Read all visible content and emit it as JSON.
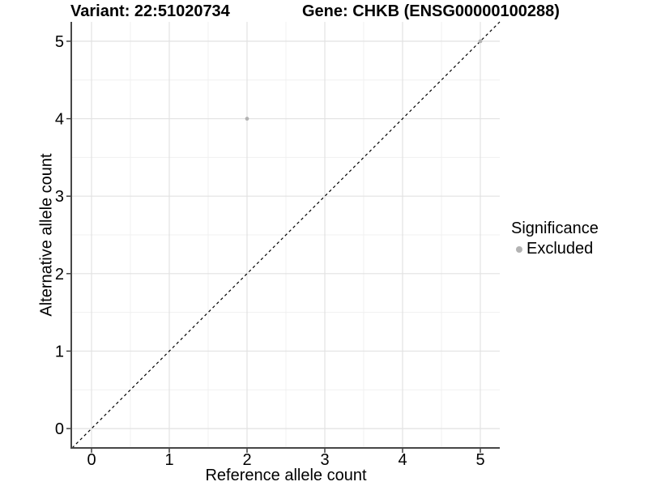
{
  "chart_data": {
    "type": "scatter",
    "title_left": "Variant: 22:51020734",
    "title_right": "Gene: CHKB (ENSG00000100288)",
    "xlabel": "Reference allele count",
    "ylabel": "Alternative allele count",
    "xlim": [
      -0.25,
      5.25
    ],
    "ylim": [
      -0.25,
      5.25
    ],
    "x_ticks": [
      0,
      1,
      2,
      3,
      4,
      5
    ],
    "y_ticks": [
      0,
      1,
      2,
      3,
      4,
      5
    ],
    "x_minor_ticks": [
      0.5,
      1.5,
      2.5,
      3.5,
      4.5
    ],
    "y_minor_ticks": [
      0.5,
      1.5,
      2.5,
      3.5,
      4.5
    ],
    "grid": "major+minor",
    "points": [
      {
        "x": 2,
        "y": 4,
        "series": "Excluded"
      },
      {
        "x": 5,
        "y": 5,
        "series": "Excluded"
      }
    ],
    "identity_line": {
      "style": "dashed",
      "from": [
        -0.25,
        -0.25
      ],
      "to": [
        5.25,
        5.25
      ]
    },
    "legend": {
      "title": "Significance",
      "position": "right",
      "items": [
        {
          "label": "Excluded",
          "color": "#b3b3b3"
        }
      ]
    },
    "colors": {
      "point": "#b3b3b3",
      "grid_major": "#e2e2e2",
      "grid_minor": "#f0f0f0",
      "axis_line": "#474747",
      "tick_mark": "#333333",
      "dashed_line": "#000000",
      "text": "#000000",
      "background": "#ffffff"
    }
  }
}
